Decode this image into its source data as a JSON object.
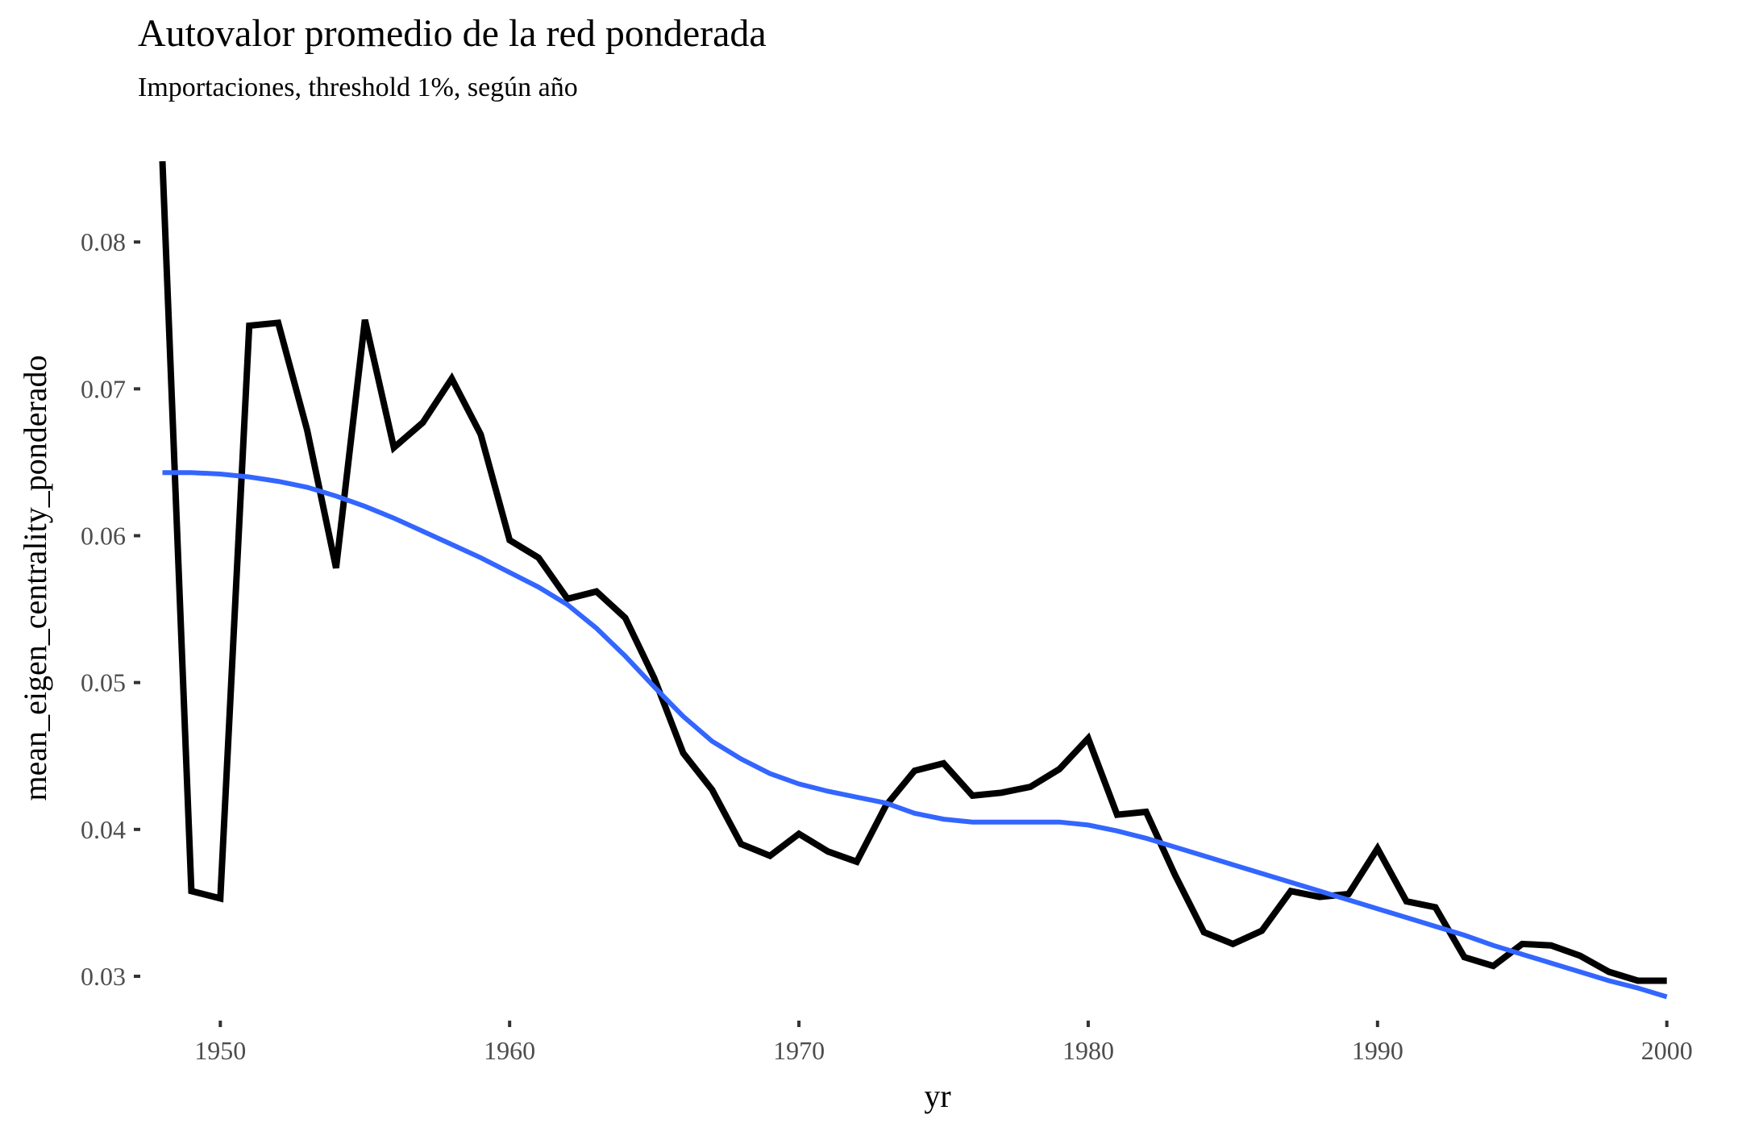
{
  "chart_data": {
    "type": "line",
    "title": "Autovalor promedio de la red ponderada",
    "subtitle": "Importaciones, threshold 1%, según año",
    "xlabel": "yr",
    "ylabel": "mean_eigen_centrality_ponderado",
    "xlim": [
      1947.4,
      2000.9
    ],
    "ylim": [
      0.0272,
      0.0855
    ],
    "xticks": [
      1950,
      1960,
      1970,
      1980,
      1990,
      2000
    ],
    "yticks": [
      0.03,
      0.04,
      0.05,
      0.06,
      0.07,
      0.08
    ],
    "ytick_labels": [
      "0.03",
      "0.04",
      "0.05",
      "0.06",
      "0.07",
      "0.08"
    ],
    "grid": false,
    "legend": "none",
    "series": [
      {
        "color": "#000000",
        "x": [
          1948,
          1949,
          1950,
          1951,
          1952,
          1953,
          1954,
          1955,
          1956,
          1957,
          1958,
          1959,
          1960,
          1961,
          1962,
          1963,
          1964,
          1965,
          1966,
          1967,
          1968,
          1969,
          1970,
          1971,
          1972,
          1973,
          1974,
          1975,
          1976,
          1977,
          1978,
          1979,
          1980,
          1981,
          1982,
          1983,
          1984,
          1985,
          1986,
          1987,
          1988,
          1989,
          1990,
          1991,
          1992,
          1993,
          1994,
          1995,
          1996,
          1997,
          1998,
          1999,
          2000
        ],
        "y": [
          0.0855,
          0.0358,
          0.0353,
          0.0743,
          0.0745,
          0.0672,
          0.0578,
          0.0747,
          0.066,
          0.0677,
          0.0707,
          0.0669,
          0.0597,
          0.0585,
          0.0557,
          0.0562,
          0.0544,
          0.0503,
          0.0452,
          0.0427,
          0.039,
          0.0382,
          0.0397,
          0.0385,
          0.0378,
          0.0416,
          0.044,
          0.0445,
          0.0423,
          0.0425,
          0.0429,
          0.0441,
          0.0462,
          0.041,
          0.0412,
          0.0369,
          0.033,
          0.0322,
          0.0331,
          0.0358,
          0.0354,
          0.0356,
          0.0387,
          0.0351,
          0.0347,
          0.0313,
          0.0307,
          0.0322,
          0.0321,
          0.0314,
          0.0303,
          0.0297,
          0.0297
        ]
      },
      {
        "color": "#3366FF",
        "x": [
          1948,
          1949,
          1950,
          1951,
          1952,
          1953,
          1954,
          1955,
          1956,
          1957,
          1958,
          1959,
          1960,
          1961,
          1962,
          1963,
          1964,
          1965,
          1966,
          1967,
          1968,
          1969,
          1970,
          1971,
          1972,
          1973,
          1974,
          1975,
          1976,
          1977,
          1978,
          1979,
          1980,
          1981,
          1982,
          1983,
          1984,
          1985,
          1986,
          1987,
          1988,
          1989,
          1990,
          1991,
          1992,
          1993,
          1994,
          1995,
          1996,
          1997,
          1998,
          1999,
          2000
        ],
        "y": [
          0.0643,
          0.0643,
          0.0642,
          0.064,
          0.0637,
          0.0633,
          0.0627,
          0.062,
          0.0612,
          0.0603,
          0.0594,
          0.0585,
          0.0575,
          0.0565,
          0.0553,
          0.0537,
          0.0518,
          0.0497,
          0.0477,
          0.046,
          0.0448,
          0.0438,
          0.0431,
          0.0426,
          0.0422,
          0.0418,
          0.0411,
          0.0407,
          0.0405,
          0.0405,
          0.0405,
          0.0405,
          0.0403,
          0.0399,
          0.0394,
          0.0388,
          0.0382,
          0.0376,
          0.037,
          0.0364,
          0.0358,
          0.0352,
          0.0346,
          0.034,
          0.0334,
          0.0328,
          0.0321,
          0.0315,
          0.0309,
          0.0303,
          0.0297,
          0.0292,
          0.0286
        ]
      }
    ]
  }
}
